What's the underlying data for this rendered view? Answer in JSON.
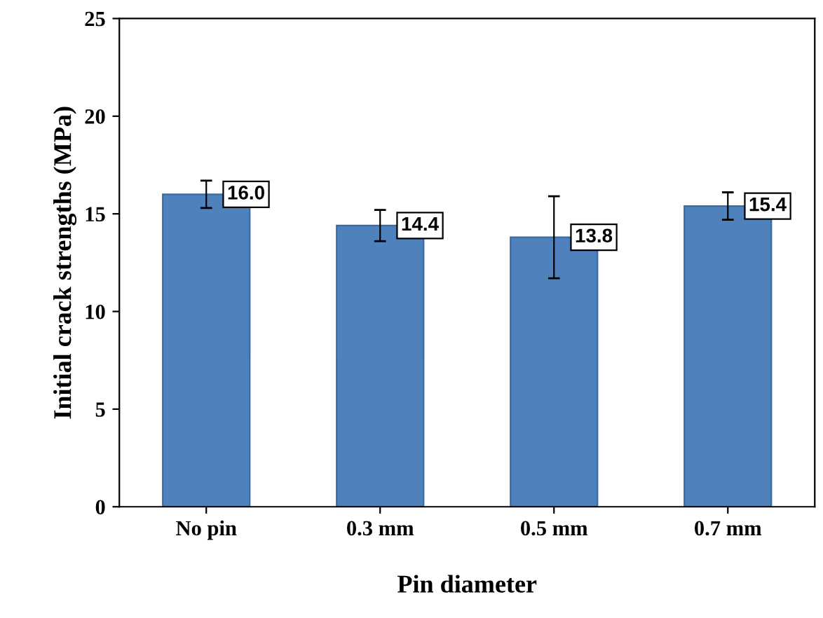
{
  "chart_data": {
    "type": "bar",
    "xlabel": "Pin diameter",
    "ylabel": "Initial crack strengths (MPa)",
    "categories": [
      "No pin",
      "0.3 mm",
      "0.5 mm",
      "0.7 mm"
    ],
    "values": [
      16.0,
      14.4,
      13.8,
      15.4
    ],
    "color": "#4f81bd",
    "errors": [
      0.7,
      0.8,
      2.1,
      0.7
    ],
    "ylim": [
      0,
      25
    ],
    "yticks": [
      0,
      5,
      10,
      15,
      20,
      25
    ],
    "grid": false,
    "value_labels": [
      "16.0",
      "14.4",
      "13.8",
      "15.4"
    ]
  }
}
